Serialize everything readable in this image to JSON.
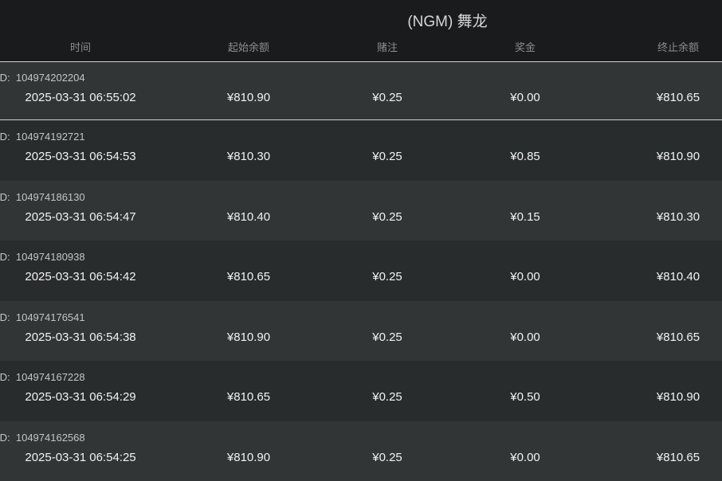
{
  "title": "(NGM) 舞龙",
  "columns": [
    "时间",
    "起始余额",
    "赌注",
    "奖金",
    "终止余额"
  ],
  "id_prefix": "ID:",
  "rows": [
    {
      "id": "104974202204",
      "time": "2025-03-31 06:55:02",
      "start": "¥810.90",
      "bet": "¥0.25",
      "win": "¥0.00",
      "end": "¥810.65",
      "selected": true
    },
    {
      "id": "104974192721",
      "time": "2025-03-31 06:54:53",
      "start": "¥810.30",
      "bet": "¥0.25",
      "win": "¥0.85",
      "end": "¥810.90"
    },
    {
      "id": "104974186130",
      "time": "2025-03-31 06:54:47",
      "start": "¥810.40",
      "bet": "¥0.25",
      "win": "¥0.15",
      "end": "¥810.30"
    },
    {
      "id": "104974180938",
      "time": "2025-03-31 06:54:42",
      "start": "¥810.65",
      "bet": "¥0.25",
      "win": "¥0.00",
      "end": "¥810.40"
    },
    {
      "id": "104974176541",
      "time": "2025-03-31 06:54:38",
      "start": "¥810.90",
      "bet": "¥0.25",
      "win": "¥0.00",
      "end": "¥810.65"
    },
    {
      "id": "104974167228",
      "time": "2025-03-31 06:54:29",
      "start": "¥810.65",
      "bet": "¥0.25",
      "win": "¥0.50",
      "end": "¥810.90"
    },
    {
      "id": "104974162568",
      "time": "2025-03-31 06:54:25",
      "start": "¥810.90",
      "bet": "¥0.25",
      "win": "¥0.00",
      "end": "¥810.65"
    }
  ]
}
